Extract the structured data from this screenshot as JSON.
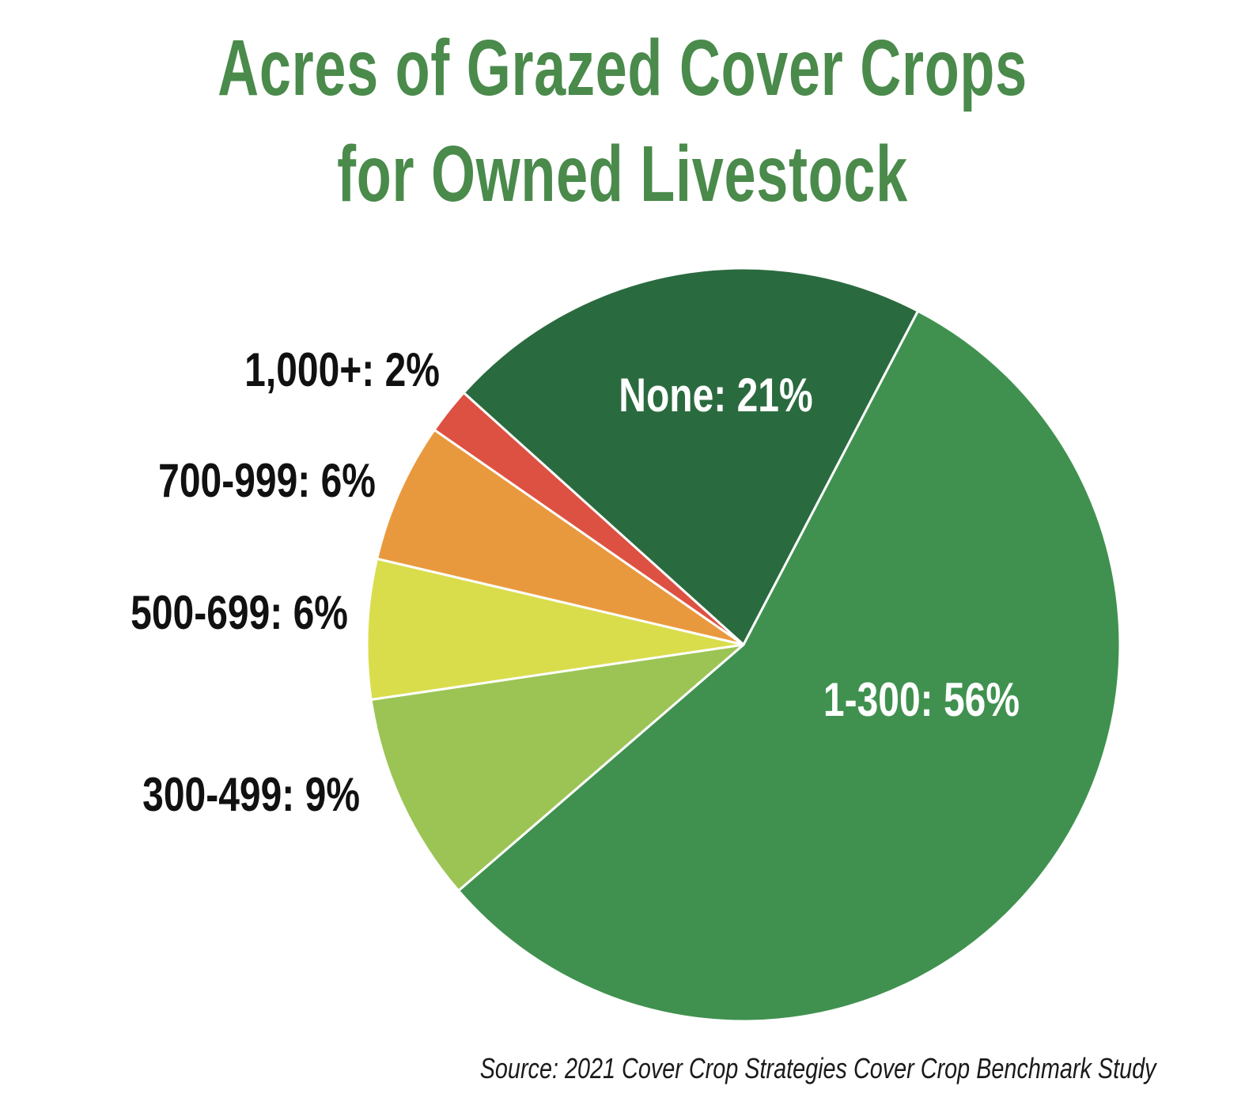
{
  "title_line1": "Acres of Grazed Cover Crops",
  "title_line2": "for Owned Livestock",
  "source": "Source: 2021 Cover Crop Strategies Cover Crop Benchmark Study",
  "colors": {
    "title": "#4a8a4b",
    "none": "#2a6a3f",
    "1-300": "#40914f",
    "300-499": "#9bc455",
    "500-699": "#d9dd4c",
    "700-999": "#e9993d",
    "1000+": "#dd5142",
    "inside_label": "#ffffff",
    "outside_label": "#111111"
  },
  "chart_data": {
    "type": "pie",
    "title": "Acres of Grazed Cover Crops for Owned Livestock",
    "slices": [
      {
        "category": "None",
        "value": 21,
        "label": "None: 21%"
      },
      {
        "category": "1-300",
        "value": 56,
        "label": "1-300: 56%"
      },
      {
        "category": "300-499",
        "value": 9,
        "label": "300-499: 9%"
      },
      {
        "category": "500-699",
        "value": 6,
        "label": "500-699: 6%"
      },
      {
        "category": "700-999",
        "value": 6,
        "label": "700-999: 6%"
      },
      {
        "category": "1,000+",
        "value": 2,
        "label": "1,000+: 2%"
      }
    ]
  }
}
